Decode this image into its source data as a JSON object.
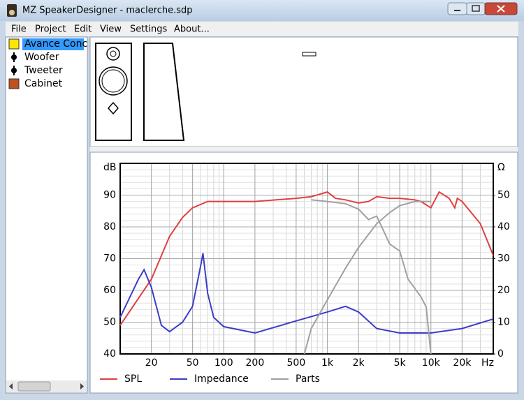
{
  "window": {
    "title": "MZ SpeakerDesigner - maclerche.sdp"
  },
  "menu": [
    "File",
    "Project",
    "Edit",
    "View",
    "Settings",
    "About..."
  ],
  "tree": [
    "Avance Conc",
    "Woofer",
    "Tweeter",
    "Cabinet"
  ],
  "chart_data": {
    "type": "line",
    "y_label": "dB",
    "y2_label": "Ω",
    "x_label": "Hz",
    "log_x": true,
    "grid": true,
    "xlim": [
      10,
      40000
    ],
    "xticks": [
      20,
      50,
      100,
      200,
      500,
      {
        "value": 1000,
        "label": "1k"
      },
      {
        "value": 2000,
        "label": "2k"
      },
      {
        "value": 5000,
        "label": "5k"
      },
      {
        "value": 10000,
        "label": "10k"
      },
      {
        "value": 20000,
        "label": "20k"
      }
    ],
    "ylim": [
      40,
      100
    ],
    "yticks": [
      40,
      50,
      60,
      70,
      80,
      90
    ],
    "y2lim": [
      0,
      60
    ],
    "y2ticks": [
      0,
      10,
      20,
      30,
      40,
      50
    ],
    "series": [
      {
        "name": "SPL",
        "color": "#e04040",
        "x": [
          10,
          20,
          30,
          40,
          50,
          70,
          100,
          200,
          500,
          700,
          1000,
          1200,
          1500,
          2000,
          2500,
          3000,
          4000,
          5000,
          7000,
          8000,
          10000,
          12000,
          15000,
          17000,
          18000,
          20000,
          30000,
          40000
        ],
        "values": [
          49,
          63.5,
          77,
          83,
          86,
          88,
          88,
          88,
          89,
          89.5,
          91,
          89,
          88.5,
          87.5,
          88,
          89.5,
          89,
          89,
          88.5,
          88,
          86,
          91,
          89,
          86,
          89,
          88,
          81,
          71
        ]
      },
      {
        "name": "Impedance",
        "color": "#3c3cc8",
        "axis": "y2",
        "x": [
          10,
          15,
          17,
          20,
          25,
          30,
          40,
          50,
          60,
          63,
          70,
          80,
          100,
          200,
          500,
          1000,
          1500,
          2000,
          3000,
          5000,
          10000,
          20000,
          40000
        ],
        "values": [
          11.5,
          23.5,
          26.5,
          21,
          9,
          7,
          10,
          15,
          28,
          31.7,
          19,
          11.5,
          8.6,
          6.6,
          10.4,
          13.2,
          15,
          13.2,
          8,
          6.6,
          6.6,
          8,
          11
        ]
      },
      {
        "name": "Parts",
        "color": "#a0a0a0",
        "x": [
          600,
          700,
          1000,
          1500,
          2000,
          3000,
          4000,
          5000,
          7000,
          10000
        ],
        "values": [
          40,
          48,
          57,
          67,
          73.5,
          81,
          84.5,
          86.7,
          88,
          88
        ]
      },
      {
        "color": "#a0a0a0",
        "x": [
          700,
          1000,
          1500,
          2000,
          2500,
          3000,
          4000,
          5000,
          6000,
          8000,
          9000,
          10000
        ],
        "values": [
          88.5,
          88,
          87.3,
          85.6,
          82.3,
          83.4,
          74.6,
          72.4,
          63.6,
          58,
          54.8,
          40
        ]
      }
    ]
  }
}
